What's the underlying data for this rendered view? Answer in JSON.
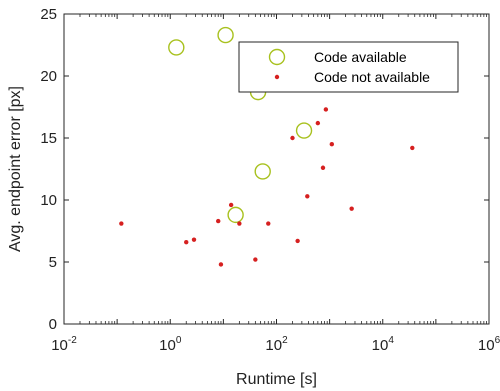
{
  "chart_data": {
    "type": "scatter",
    "xlabel": "Runtime [s]",
    "ylabel": "Avg. endpoint error [px]",
    "xscale": "log",
    "xlim": [
      0.01,
      1000000
    ],
    "ylim": [
      0,
      25
    ],
    "x_ticks": [
      {
        "base": "10",
        "exp": "-2"
      },
      {
        "base": "10",
        "exp": "0"
      },
      {
        "base": "10",
        "exp": "2"
      },
      {
        "base": "10",
        "exp": "4"
      },
      {
        "base": "10",
        "exp": "6"
      }
    ],
    "y_ticks": [
      "0",
      "5",
      "10",
      "15",
      "20",
      "25"
    ],
    "grid": false,
    "legend_position": "top-right",
    "series": [
      {
        "name": "Code available",
        "marker": "open-circle",
        "color": "#a8c11e",
        "points": [
          {
            "x": 1.3,
            "y": 22.3
          },
          {
            "x": 11,
            "y": 23.3
          },
          {
            "x": 45,
            "y": 18.7
          },
          {
            "x": 330,
            "y": 15.6
          },
          {
            "x": 55,
            "y": 12.3
          },
          {
            "x": 17,
            "y": 8.8
          }
        ]
      },
      {
        "name": "Code not available",
        "marker": "dot",
        "color": "#d62020",
        "points": [
          {
            "x": 0.12,
            "y": 8.1
          },
          {
            "x": 2.0,
            "y": 6.6
          },
          {
            "x": 2.8,
            "y": 6.8
          },
          {
            "x": 8,
            "y": 8.3
          },
          {
            "x": 9,
            "y": 4.8
          },
          {
            "x": 14,
            "y": 9.6
          },
          {
            "x": 20,
            "y": 8.1
          },
          {
            "x": 40,
            "y": 5.2
          },
          {
            "x": 70,
            "y": 8.1
          },
          {
            "x": 250,
            "y": 6.7
          },
          {
            "x": 200,
            "y": 15.0
          },
          {
            "x": 380,
            "y": 10.3
          },
          {
            "x": 600,
            "y": 16.2
          },
          {
            "x": 750,
            "y": 12.6
          },
          {
            "x": 850,
            "y": 17.3
          },
          {
            "x": 1100,
            "y": 14.5
          },
          {
            "x": 2600,
            "y": 9.3
          },
          {
            "x": 36000,
            "y": 14.2
          }
        ]
      }
    ]
  }
}
